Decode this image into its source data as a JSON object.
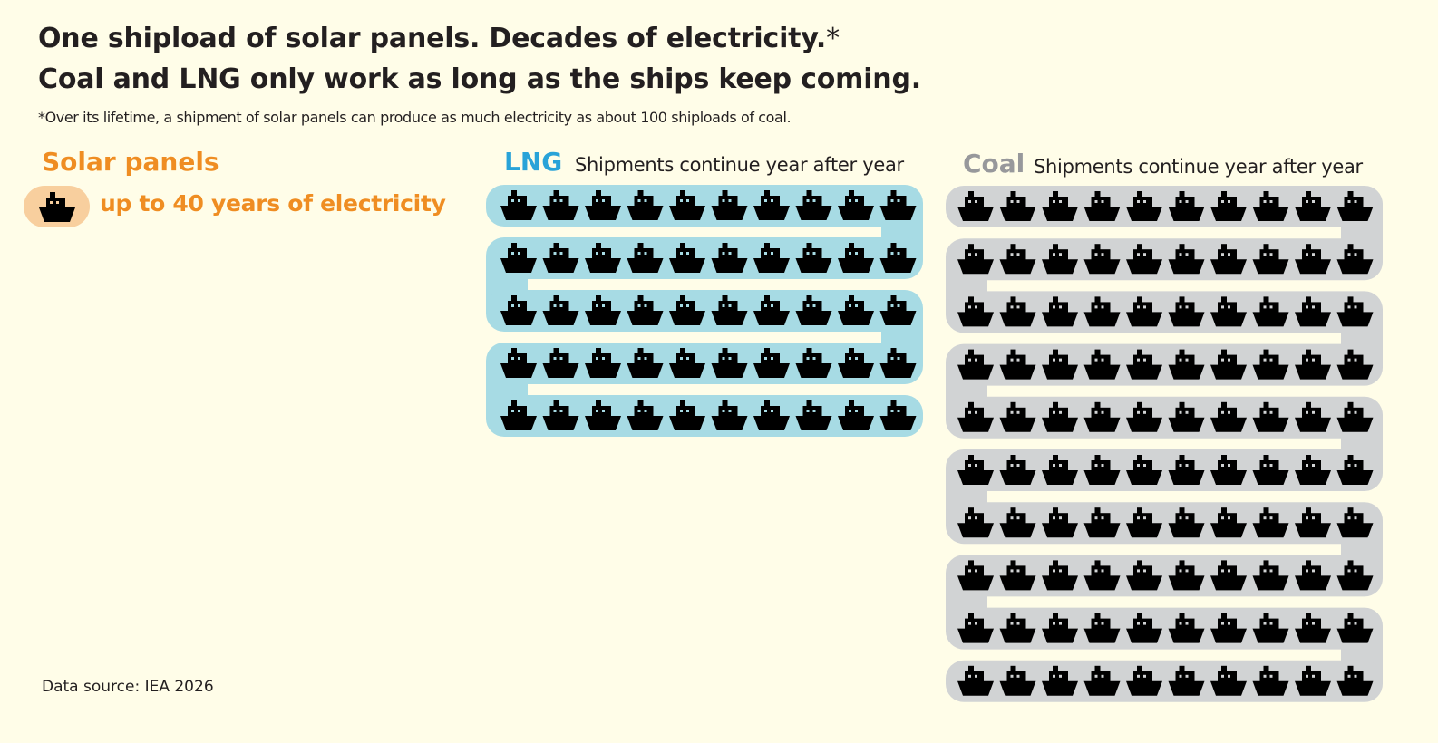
{
  "title_line1": "One shipload of solar panels. Decades of electricity.",
  "title_asterisk": "*",
  "title_line2": "Coal and LNG only work as long as the ships keep coming.",
  "footnote": "*Over its lifetime, a shipment of solar panels can produce as much electricity as about 100 shiploads of coal.",
  "source": "Data source: IEA 2026",
  "icon": "ship-icon",
  "chart_data": [
    {
      "type": "pictograph",
      "title": "Solar panels",
      "label": "up to 40 years of electricity",
      "ships": 1,
      "color": "#ef8d22",
      "background": "#f8cf9e"
    },
    {
      "type": "pictograph",
      "title": "LNG",
      "subtitle": "Shipments continue year after year",
      "ships": 50,
      "per_row": 10,
      "color": "#29a3d8",
      "background": "#a7dbe4"
    },
    {
      "type": "pictograph",
      "title": "Coal",
      "subtitle": "Shipments continue year after year",
      "ships": 100,
      "per_row": 10,
      "color": "#97989b",
      "background": "#d1d3d4"
    }
  ]
}
